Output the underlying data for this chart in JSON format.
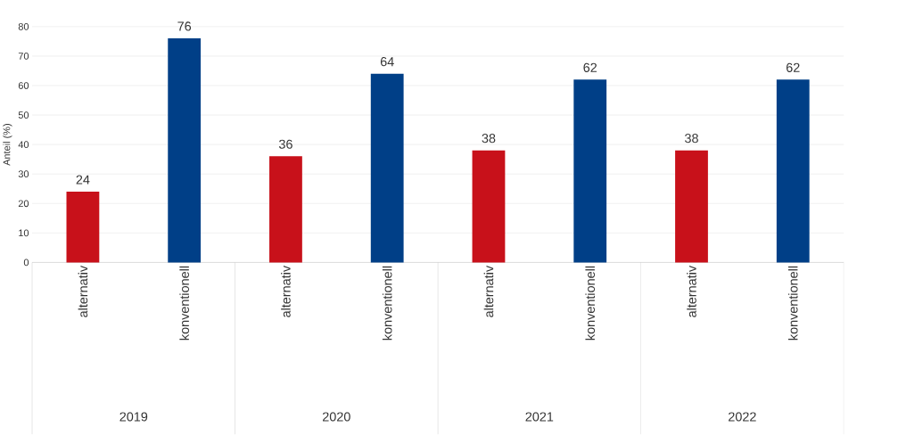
{
  "chart_data": {
    "type": "bar",
    "ylabel": "Anteil (%)",
    "categories": [
      "alternativ",
      "konventionell",
      "alternativ",
      "konventionell",
      "alternativ",
      "konventionell",
      "alternativ",
      "konventionell"
    ],
    "values": [
      24,
      76,
      36,
      64,
      38,
      62,
      38,
      62
    ],
    "colors": [
      "#c8111a",
      "#003f87",
      "#c8111a",
      "#003f87",
      "#c8111a",
      "#003f87",
      "#c8111a",
      "#003f87"
    ],
    "ylim": [
      0,
      80
    ],
    "yticks": [
      0,
      10,
      20,
      30,
      40,
      50,
      60,
      70,
      80
    ],
    "grid": "y",
    "data_labels": true,
    "annotations": [
      "2019",
      "2020",
      "2021",
      "2022"
    ]
  }
}
